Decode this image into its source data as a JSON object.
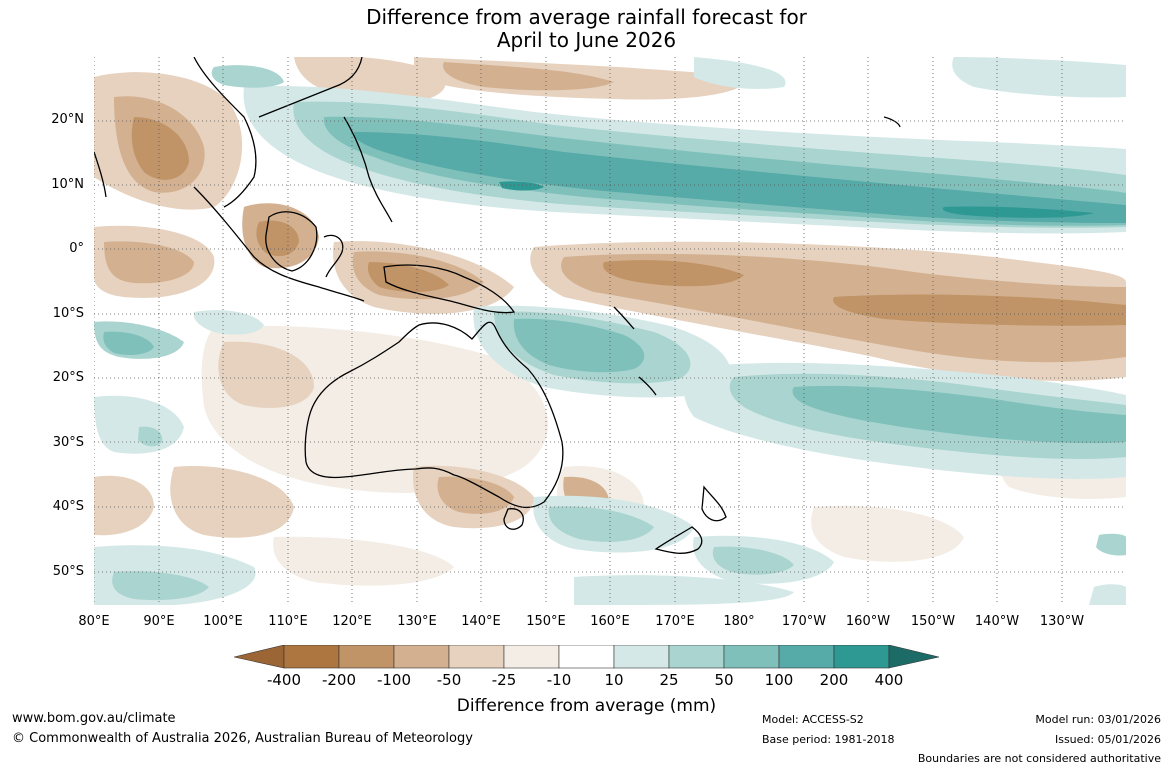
{
  "title": {
    "line1": "Difference from average rainfall forecast for",
    "line2": "April to June 2026"
  },
  "map": {
    "lat_labels": [
      "20°N",
      "10°N",
      "0°",
      "10°S",
      "20°S",
      "30°S",
      "40°S",
      "50°S"
    ],
    "lon_labels": [
      "80°E",
      "90°E",
      "100°E",
      "110°E",
      "120°E",
      "130°E",
      "140°E",
      "150°E",
      "160°E",
      "170°E",
      "180°",
      "170°W",
      "160°W",
      "150°W",
      "140°W",
      "130°W"
    ],
    "grid": true
  },
  "legend": {
    "ticks": [
      "-400",
      "-200",
      "-100",
      "-50",
      "-25",
      "-10",
      "10",
      "25",
      "50",
      "100",
      "200",
      "400"
    ],
    "colors": {
      "lt_m400": "#9c6535",
      "m400_m200": "#ad753f",
      "m200_m100": "#c19468",
      "m100_m50": "#d3b190",
      "m50_m25": "#e6d2bf",
      "m25_m10": "#f3ede6",
      "m10_10": "#ffffff",
      "10_25": "#d4e9e7",
      "25_50": "#a9d4d0",
      "50_100": "#80c0bb",
      "100_200": "#56aaa8",
      "200_400": "#2e9893",
      "gt_400": "#1d6b67"
    },
    "label": "Difference from average (mm)"
  },
  "footer": {
    "url": "www.bom.gov.au/climate",
    "copyright": "© Commonwealth of Australia 2026, Australian Bureau of Meteorology",
    "model": "Model: ACCESS-S2",
    "base_period": "Base period: 1981-2018",
    "model_run": "Model run: 03/01/2026",
    "issued": "Issued: 05/01/2026",
    "disclaimer": "Boundaries are not considered authoritative"
  }
}
